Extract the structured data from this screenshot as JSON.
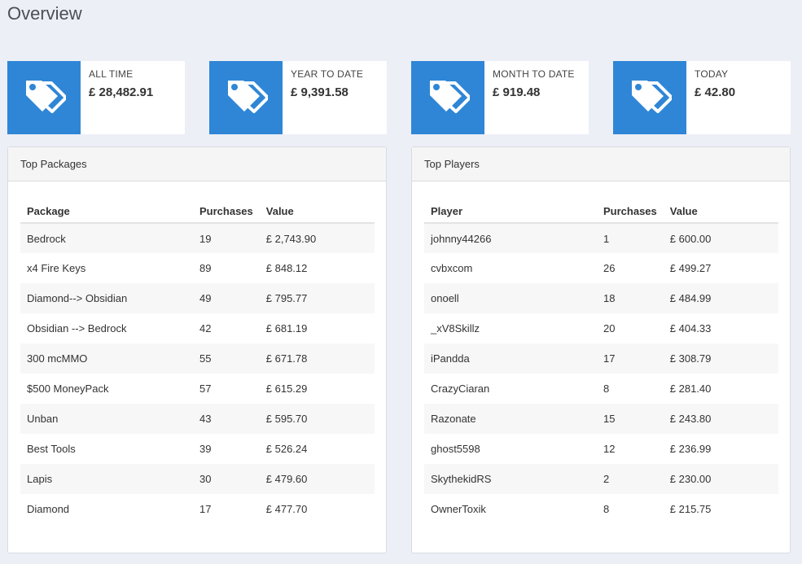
{
  "page": {
    "title": "Overview"
  },
  "stats": [
    {
      "label": "ALL TIME",
      "value": "£ 28,482.91",
      "icon": "tags-icon"
    },
    {
      "label": "YEAR TO DATE",
      "value": "£ 9,391.58",
      "icon": "tags-icon"
    },
    {
      "label": "MONTH TO DATE",
      "value": "£ 919.48",
      "icon": "tags-icon"
    },
    {
      "label": "TODAY",
      "value": "£ 42.80",
      "icon": "tags-icon"
    }
  ],
  "colors": {
    "accent": "#2f86d6",
    "background": "#eceff6"
  },
  "top_packages": {
    "title": "Top Packages",
    "headers": [
      "Package",
      "Purchases",
      "Value"
    ],
    "rows": [
      [
        "Bedrock",
        "19",
        "£ 2,743.90"
      ],
      [
        "x4 Fire Keys",
        "89",
        "£ 848.12"
      ],
      [
        "Diamond--> Obsidian",
        "49",
        "£ 795.77"
      ],
      [
        "Obsidian --> Bedrock",
        "42",
        "£ 681.19"
      ],
      [
        "300 mcMMO",
        "55",
        "£ 671.78"
      ],
      [
        "$500 MoneyPack",
        "57",
        "£ 615.29"
      ],
      [
        "Unban",
        "43",
        "£ 595.70"
      ],
      [
        "Best Tools",
        "39",
        "£ 526.24"
      ],
      [
        "Lapis",
        "30",
        "£ 479.60"
      ],
      [
        "Diamond",
        "17",
        "£ 477.70"
      ]
    ]
  },
  "top_players": {
    "title": "Top Players",
    "headers": [
      "Player",
      "Purchases",
      "Value"
    ],
    "rows": [
      [
        "johnny44266",
        "1",
        "£ 600.00"
      ],
      [
        "cvbxcom",
        "26",
        "£ 499.27"
      ],
      [
        "onoell",
        "18",
        "£ 484.99"
      ],
      [
        "_xV8Skillz",
        "20",
        "£ 404.33"
      ],
      [
        "iPandda",
        "17",
        "£ 308.79"
      ],
      [
        "CrazyCiaran",
        "8",
        "£ 281.40"
      ],
      [
        "Razonate",
        "15",
        "£ 243.80"
      ],
      [
        "ghost5598",
        "12",
        "£ 236.99"
      ],
      [
        "SkythekidRS",
        "2",
        "£ 230.00"
      ],
      [
        "OwnerToxik",
        "8",
        "£ 215.75"
      ]
    ]
  }
}
